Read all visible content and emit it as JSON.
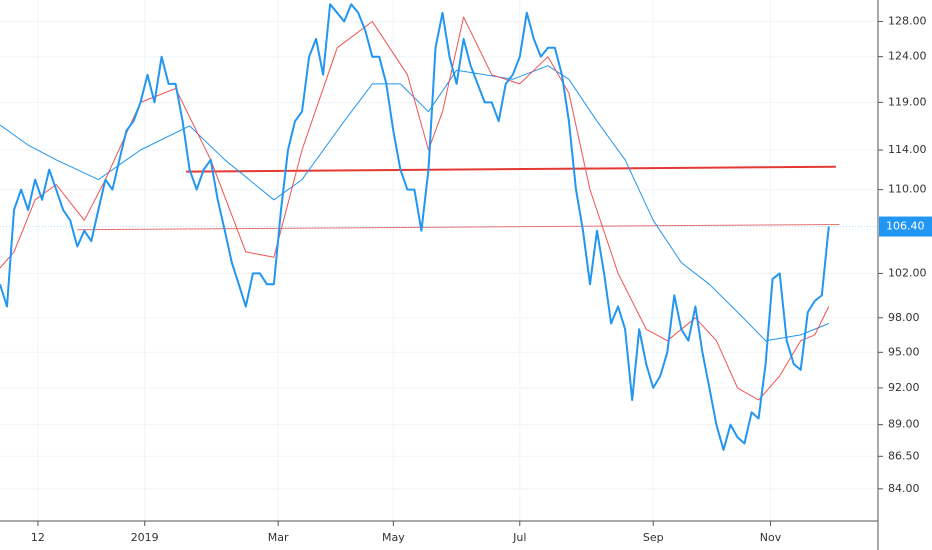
{
  "chart_data": {
    "type": "line",
    "log_y": true,
    "grid": true,
    "xlim": [
      0,
      125
    ],
    "xticks": [
      {
        "value": 5.4,
        "label": "12"
      },
      {
        "value": 20.6,
        "label": "2019"
      },
      {
        "value": 39.6,
        "label": "Mar"
      },
      {
        "value": 56,
        "label": "May"
      },
      {
        "value": 74,
        "label": "Jul"
      },
      {
        "value": 93,
        "label": "Sep"
      },
      {
        "value": 109.7,
        "label": "Nov"
      }
    ],
    "ylim": [
      81.6,
      130.5
    ],
    "yticks": [
      {
        "value": 84,
        "label": "84.00"
      },
      {
        "value": 86.5,
        "label": "86.50"
      },
      {
        "value": 89,
        "label": "89.00"
      },
      {
        "value": 92,
        "label": "92.00"
      },
      {
        "value": 95,
        "label": "95.00"
      },
      {
        "value": 98,
        "label": "98.00"
      },
      {
        "value": 102,
        "label": "102.00"
      },
      {
        "value": 110,
        "label": "110.00"
      },
      {
        "value": 114,
        "label": "114.00"
      },
      {
        "value": 119,
        "label": "119.00"
      },
      {
        "value": 124,
        "label": "124.00"
      },
      {
        "value": 128,
        "label": "128.00"
      }
    ],
    "last_price": {
      "value": 106.4,
      "label": "106.40",
      "color": "#2196f3"
    },
    "series": [
      {
        "color": "#2196f3",
        "width": 2,
        "x": [
          0,
          1,
          2,
          3,
          4,
          5,
          6,
          7,
          8,
          9,
          10,
          11,
          12,
          13,
          14,
          15,
          16,
          17,
          18,
          19,
          20,
          21,
          22,
          23,
          24,
          25,
          26,
          27,
          28,
          29,
          30,
          31,
          32,
          33,
          34,
          35,
          36,
          37,
          38,
          39,
          40,
          41,
          42,
          43,
          44,
          45,
          46,
          47,
          48,
          49,
          50,
          51,
          52,
          53,
          54,
          55,
          56,
          57,
          58,
          59,
          60,
          61,
          62,
          63,
          64,
          65,
          66,
          67,
          68,
          69,
          70,
          71,
          72,
          73,
          74,
          75,
          76,
          77,
          78,
          79,
          80,
          81,
          82,
          83,
          84,
          85,
          86,
          87,
          88,
          89,
          90,
          91,
          92,
          93,
          94,
          95,
          96,
          97,
          98,
          99,
          100,
          101,
          102,
          103,
          104,
          105,
          106,
          107,
          108,
          109,
          110,
          111,
          112,
          113,
          114,
          115,
          116,
          117,
          118
        ],
        "values": [
          101,
          99,
          108,
          110,
          108,
          111,
          109,
          112,
          110,
          108,
          107,
          104.5,
          106,
          105,
          108,
          111,
          110,
          113,
          116,
          117,
          119,
          122,
          119,
          124,
          121,
          121,
          117,
          112,
          110,
          112,
          113,
          109,
          106,
          103,
          101,
          99,
          102,
          102,
          101,
          101,
          108,
          114,
          117,
          118,
          124,
          126,
          122,
          130,
          129,
          128,
          130,
          129,
          127,
          124,
          124,
          121,
          116,
          112,
          110,
          110,
          106,
          112,
          125,
          129,
          124,
          121,
          126,
          123,
          121,
          119,
          119,
          117,
          121,
          122,
          124,
          129,
          126,
          124,
          125,
          125,
          122,
          117,
          110,
          106,
          101,
          106,
          102,
          97.5,
          99,
          97,
          91,
          97,
          94,
          92,
          93,
          95,
          100,
          97,
          96,
          99,
          95,
          92,
          89,
          87,
          89,
          88,
          87.5,
          90,
          89.5,
          94,
          101.5,
          102,
          96,
          94,
          93.5,
          98.5,
          99.5,
          100,
          106.4
        ]
      },
      {
        "color": "#ef5350",
        "width": 1,
        "x": [
          0,
          2,
          5,
          8,
          12,
          15,
          20,
          25,
          30,
          35,
          39,
          43,
          48,
          53,
          58,
          61,
          63,
          66,
          70,
          74,
          78,
          81,
          84,
          88,
          92,
          95,
          99,
          102,
          105,
          108,
          111,
          114,
          116,
          118
        ],
        "values": [
          102.5,
          104,
          109,
          110.5,
          107,
          111,
          119,
          120.5,
          113,
          104,
          103.5,
          114,
          125,
          128,
          122,
          114,
          118,
          128.5,
          122,
          121,
          124,
          120,
          110,
          102,
          97,
          96,
          98,
          96,
          92,
          91,
          93,
          96,
          96.5,
          99
        ]
      },
      {
        "color": "#2196f3",
        "width": 1,
        "x": [
          0,
          4,
          8,
          14,
          20,
          27,
          32,
          39,
          43,
          49,
          53,
          57,
          61,
          65,
          69,
          73,
          78,
          81,
          85,
          89,
          93,
          97,
          101,
          105,
          109,
          114,
          118
        ],
        "values": [
          116.6,
          114.5,
          113,
          111,
          114,
          116.5,
          113,
          109,
          111,
          117,
          121,
          121,
          118,
          122.5,
          122,
          121.5,
          123,
          121.5,
          117,
          113,
          107,
          103,
          101,
          98.5,
          96,
          96.5,
          97.5
        ]
      }
    ],
    "trend_lines": [
      {
        "color": "#e53935",
        "width": 2,
        "x": [
          26.5,
          119
        ],
        "values": [
          111.8,
          112.3
        ]
      },
      {
        "color": "#e57373",
        "width": 1,
        "x": [
          11,
          119.5
        ],
        "values": [
          106.1,
          106.6
        ]
      }
    ]
  }
}
